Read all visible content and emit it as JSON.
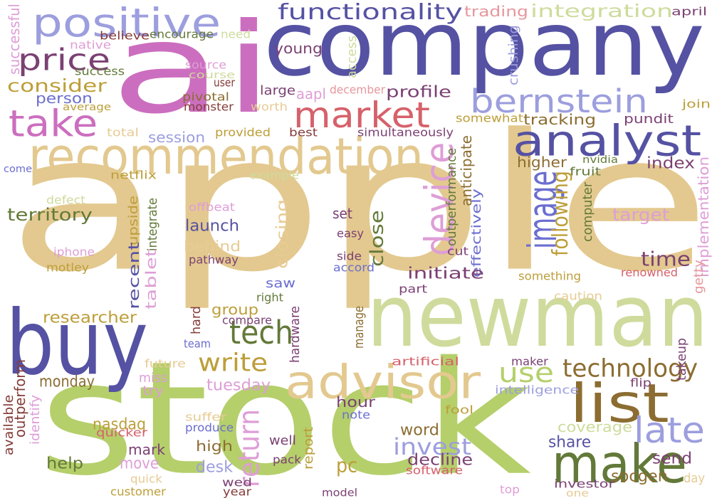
{
  "palette": {
    "tan": "#e3c98f",
    "navy": "#5552a3",
    "magenta": "#cc6ebf",
    "lime": "#b5cf6b",
    "olive": "#8c6d31",
    "crimson": "#d6616b",
    "lavender": "#9c9ede",
    "sage": "#cedb9c",
    "pink": "#e7969c",
    "plum": "#7b4173",
    "rose": "#de9ed6",
    "dusk": "#6b6ecf",
    "moss": "#637939",
    "maroon": "#843c39",
    "ochre": "#bd9e39",
    "lightrose": "#e7cb94"
  },
  "words": [
    {
      "id": "apple",
      "text": "apple",
      "color": "tan"
    },
    {
      "id": "stock",
      "text": "stock",
      "color": "lime"
    },
    {
      "id": "company",
      "text": "company",
      "color": "navy"
    },
    {
      "id": "ai",
      "text": "ai",
      "color": "magenta"
    },
    {
      "id": "newman",
      "text": "newman",
      "color": "sage"
    },
    {
      "id": "buy",
      "text": "buy",
      "color": "navy"
    },
    {
      "id": "recommendation",
      "text": "recommendation",
      "color": "tan"
    },
    {
      "id": "positive",
      "text": "positive",
      "color": "lavender"
    },
    {
      "id": "analyst",
      "text": "analyst",
      "color": "navy"
    },
    {
      "id": "advisor",
      "text": "advisor",
      "color": "tan"
    },
    {
      "id": "make",
      "text": "make",
      "color": "moss"
    },
    {
      "id": "list",
      "text": "list",
      "color": "olive"
    },
    {
      "id": "market",
      "text": "market",
      "color": "crimson"
    },
    {
      "id": "take",
      "text": "take",
      "color": "magenta"
    },
    {
      "id": "bernstein",
      "text": "bernstein",
      "color": "lavender"
    },
    {
      "id": "price",
      "text": "price",
      "color": "plum"
    },
    {
      "id": "tech",
      "text": "tech",
      "color": "moss"
    },
    {
      "id": "late",
      "text": "late",
      "color": "lavender"
    },
    {
      "id": "image",
      "text": "image",
      "color": "dusk"
    },
    {
      "id": "device",
      "text": "device",
      "color": "rose"
    },
    {
      "id": "functionality",
      "text": "functionality",
      "color": "navy"
    },
    {
      "id": "integration",
      "text": "integration",
      "color": "sage"
    },
    {
      "id": "use",
      "text": "use",
      "color": "lime"
    },
    {
      "id": "technology",
      "text": "technology",
      "color": "olive"
    },
    {
      "id": "write",
      "text": "write",
      "color": "ochre"
    },
    {
      "id": "time",
      "text": "time",
      "color": "plum"
    },
    {
      "id": "return",
      "text": "return",
      "color": "rose"
    },
    {
      "id": "invest",
      "text": "invest",
      "color": "lavender"
    },
    {
      "id": "consider",
      "text": "consider",
      "color": "ochre"
    },
    {
      "id": "trading",
      "text": "trading",
      "color": "pink"
    },
    {
      "id": "april",
      "text": "april",
      "color": "plum"
    },
    {
      "id": "successful",
      "text": "successful",
      "color": "rose"
    },
    {
      "id": "believe",
      "text": "believe",
      "color": "maroon"
    },
    {
      "id": "encourage",
      "text": "encourage",
      "color": "moss"
    },
    {
      "id": "need",
      "text": "need",
      "color": "sage"
    },
    {
      "id": "native",
      "text": "native",
      "color": "rose"
    },
    {
      "id": "young",
      "text": "young",
      "color": "plum"
    },
    {
      "id": "access",
      "text": "access",
      "color": "sage"
    },
    {
      "id": "crushing",
      "text": "crushing",
      "color": "lavender"
    },
    {
      "id": "success",
      "text": "success",
      "color": "moss"
    },
    {
      "id": "source",
      "text": "source",
      "color": "rose"
    },
    {
      "id": "course",
      "text": "course",
      "color": "sage"
    },
    {
      "id": "user",
      "text": "user",
      "color": "maroon"
    },
    {
      "id": "person",
      "text": "person",
      "color": "dusk"
    },
    {
      "id": "large",
      "text": "large",
      "color": "plum"
    },
    {
      "id": "aapl",
      "text": "aapl",
      "color": "rose"
    },
    {
      "id": "december",
      "text": "december",
      "color": "pink"
    },
    {
      "id": "profile",
      "text": "profile",
      "color": "plum"
    },
    {
      "id": "pivotal",
      "text": "pivotal",
      "color": "olive"
    },
    {
      "id": "average",
      "text": "average",
      "color": "ochre"
    },
    {
      "id": "monster",
      "text": "monster",
      "color": "maroon"
    },
    {
      "id": "worth",
      "text": "worth",
      "color": "lightrose"
    },
    {
      "id": "join",
      "text": "join",
      "color": "ochre"
    },
    {
      "id": "tracking",
      "text": "tracking",
      "color": "olive"
    },
    {
      "id": "pundit",
      "text": "pundit",
      "color": "plum"
    },
    {
      "id": "somewhat",
      "text": "somewhat",
      "color": "ochre"
    },
    {
      "id": "total",
      "text": "total",
      "color": "lightrose"
    },
    {
      "id": "session",
      "text": "session",
      "color": "lavender"
    },
    {
      "id": "provided",
      "text": "provided",
      "color": "ochre"
    },
    {
      "id": "best",
      "text": "best",
      "color": "maroon"
    },
    {
      "id": "simultaneously",
      "text": "simultaneously",
      "color": "plum"
    },
    {
      "id": "come",
      "text": "come",
      "color": "dusk"
    },
    {
      "id": "anticipate",
      "text": "anticipate",
      "color": "olive"
    },
    {
      "id": "higher",
      "text": "higher",
      "color": "olive"
    },
    {
      "id": "index",
      "text": "index",
      "color": "plum"
    },
    {
      "id": "nvidia",
      "text": "nvidia",
      "color": "moss"
    },
    {
      "id": "fruit",
      "text": "fruit",
      "color": "moss"
    },
    {
      "id": "netflix",
      "text": "netflix",
      "color": "ochre"
    },
    {
      "id": "example",
      "text": "example",
      "color": "sage"
    },
    {
      "id": "outperformance",
      "text": "outperformance",
      "color": "moss"
    },
    {
      "id": "computer",
      "text": "computer",
      "color": "moss"
    },
    {
      "id": "defect",
      "text": "defect",
      "color": "sage"
    },
    {
      "id": "following",
      "text": "following",
      "color": "ochre"
    },
    {
      "id": "territory",
      "text": "territory",
      "color": "moss"
    },
    {
      "id": "offbeat",
      "text": "offbeat",
      "color": "rose"
    },
    {
      "id": "upside",
      "text": "upside",
      "color": "ochre"
    },
    {
      "id": "integrate",
      "text": "integrate",
      "color": "moss"
    },
    {
      "id": "set",
      "text": "set",
      "color": "plum"
    },
    {
      "id": "target",
      "text": "target",
      "color": "rose"
    },
    {
      "id": "launch",
      "text": "launch",
      "color": "navy"
    },
    {
      "id": "closing",
      "text": "closing",
      "color": "lightrose"
    },
    {
      "id": "easy",
      "text": "easy",
      "color": "plum"
    },
    {
      "id": "close",
      "text": "close",
      "color": "moss"
    },
    {
      "id": "implementation",
      "text": "implementation",
      "color": "rose"
    },
    {
      "id": "behind",
      "text": "behind",
      "color": "lightrose"
    },
    {
      "id": "iphone",
      "text": "iphone",
      "color": "rose"
    },
    {
      "id": "pathway",
      "text": "pathway",
      "color": "plum"
    },
    {
      "id": "side",
      "text": "side",
      "color": "plum"
    },
    {
      "id": "cut",
      "text": "cut",
      "color": "plum"
    },
    {
      "id": "effectively",
      "text": "effectively",
      "color": "dusk"
    },
    {
      "id": "recent",
      "text": "recent",
      "color": "navy"
    },
    {
      "id": "motley",
      "text": "motley",
      "color": "ochre"
    },
    {
      "id": "accord",
      "text": "accord",
      "color": "dusk"
    },
    {
      "id": "initiate",
      "text": "initiate",
      "color": "plum"
    },
    {
      "id": "renowned",
      "text": "renowned",
      "color": "crimson"
    },
    {
      "id": "getty",
      "text": "getty",
      "color": "pink"
    },
    {
      "id": "tablet",
      "text": "tablet",
      "color": "rose"
    },
    {
      "id": "saw",
      "text": "saw",
      "color": "dusk"
    },
    {
      "id": "something",
      "text": "something",
      "color": "ochre"
    },
    {
      "id": "part",
      "text": "part",
      "color": "plum"
    },
    {
      "id": "caution",
      "text": "caution",
      "color": "lightrose"
    },
    {
      "id": "right",
      "text": "right",
      "color": "moss"
    },
    {
      "id": "researcher",
      "text": "researcher",
      "color": "ochre"
    },
    {
      "id": "group",
      "text": "group",
      "color": "ochre"
    },
    {
      "id": "compare",
      "text": "compare",
      "color": "plum"
    },
    {
      "id": "hard",
      "text": "hard",
      "color": "maroon"
    },
    {
      "id": "manage",
      "text": "manage",
      "color": "olive"
    },
    {
      "id": "hardware",
      "text": "hardware",
      "color": "plum"
    },
    {
      "id": "team",
      "text": "team",
      "color": "dusk"
    },
    {
      "id": "takeup",
      "text": "takeup",
      "color": "plum"
    },
    {
      "id": "artificial",
      "text": "artificial",
      "color": "crimson"
    },
    {
      "id": "future",
      "text": "future",
      "color": "lightrose"
    },
    {
      "id": "maker",
      "text": "maker",
      "color": "plum"
    },
    {
      "id": "monday",
      "text": "monday",
      "color": "olive"
    },
    {
      "id": "outperform",
      "text": "outperform",
      "color": "maroon"
    },
    {
      "id": "available",
      "text": "available",
      "color": "maroon"
    },
    {
      "id": "miss",
      "text": "miss",
      "color": "rose"
    },
    {
      "id": "tuesday",
      "text": "tuesday",
      "color": "rose"
    },
    {
      "id": "intelligence",
      "text": "intelligence",
      "color": "lavender"
    },
    {
      "id": "flip",
      "text": "flip",
      "color": "plum"
    },
    {
      "id": "try",
      "text": "try",
      "color": "rose"
    },
    {
      "id": "identify",
      "text": "identify",
      "color": "rose"
    },
    {
      "id": "hour",
      "text": "hour",
      "color": "plum"
    },
    {
      "id": "note",
      "text": "note",
      "color": "dusk"
    },
    {
      "id": "fool",
      "text": "fool",
      "color": "ochre"
    },
    {
      "id": "suffer",
      "text": "suffer",
      "color": "lightrose"
    },
    {
      "id": "produce",
      "text": "produce",
      "color": "dusk"
    },
    {
      "id": "nasdaq",
      "text": "nasdaq",
      "color": "ochre"
    },
    {
      "id": "quicker",
      "text": "quicker",
      "color": "crimson"
    },
    {
      "id": "word",
      "text": "word",
      "color": "olive"
    },
    {
      "id": "coverage",
      "text": "coverage",
      "color": "sage"
    },
    {
      "id": "share",
      "text": "share",
      "color": "navy"
    },
    {
      "id": "mark",
      "text": "mark",
      "color": "plum"
    },
    {
      "id": "high",
      "text": "high",
      "color": "olive"
    },
    {
      "id": "well",
      "text": "well",
      "color": "plum"
    },
    {
      "id": "report",
      "text": "report",
      "color": "ochre"
    },
    {
      "id": "pc",
      "text": "pc",
      "color": "ochre"
    },
    {
      "id": "decline",
      "text": "decline",
      "color": "plum"
    },
    {
      "id": "send",
      "text": "send",
      "color": "plum"
    },
    {
      "id": "help",
      "text": "help",
      "color": "moss"
    },
    {
      "id": "move",
      "text": "move",
      "color": "rose"
    },
    {
      "id": "pack",
      "text": "pack",
      "color": "plum"
    },
    {
      "id": "software",
      "text": "software",
      "color": "crimson"
    },
    {
      "id": "desk",
      "text": "desk",
      "color": "lavender"
    },
    {
      "id": "day",
      "text": "day",
      "color": "lightrose"
    },
    {
      "id": "quick",
      "text": "quick",
      "color": "lightrose"
    },
    {
      "id": "wed",
      "text": "wed",
      "color": "plum"
    },
    {
      "id": "socgen",
      "text": "socgen",
      "color": "olive"
    },
    {
      "id": "investor",
      "text": "investor",
      "color": "plum"
    },
    {
      "id": "customer",
      "text": "customer",
      "color": "ochre"
    },
    {
      "id": "year",
      "text": "year",
      "color": "maroon"
    },
    {
      "id": "model",
      "text": "model",
      "color": "plum"
    },
    {
      "id": "top",
      "text": "top",
      "color": "rose"
    },
    {
      "id": "one",
      "text": "one",
      "color": "lightrose"
    }
  ]
}
